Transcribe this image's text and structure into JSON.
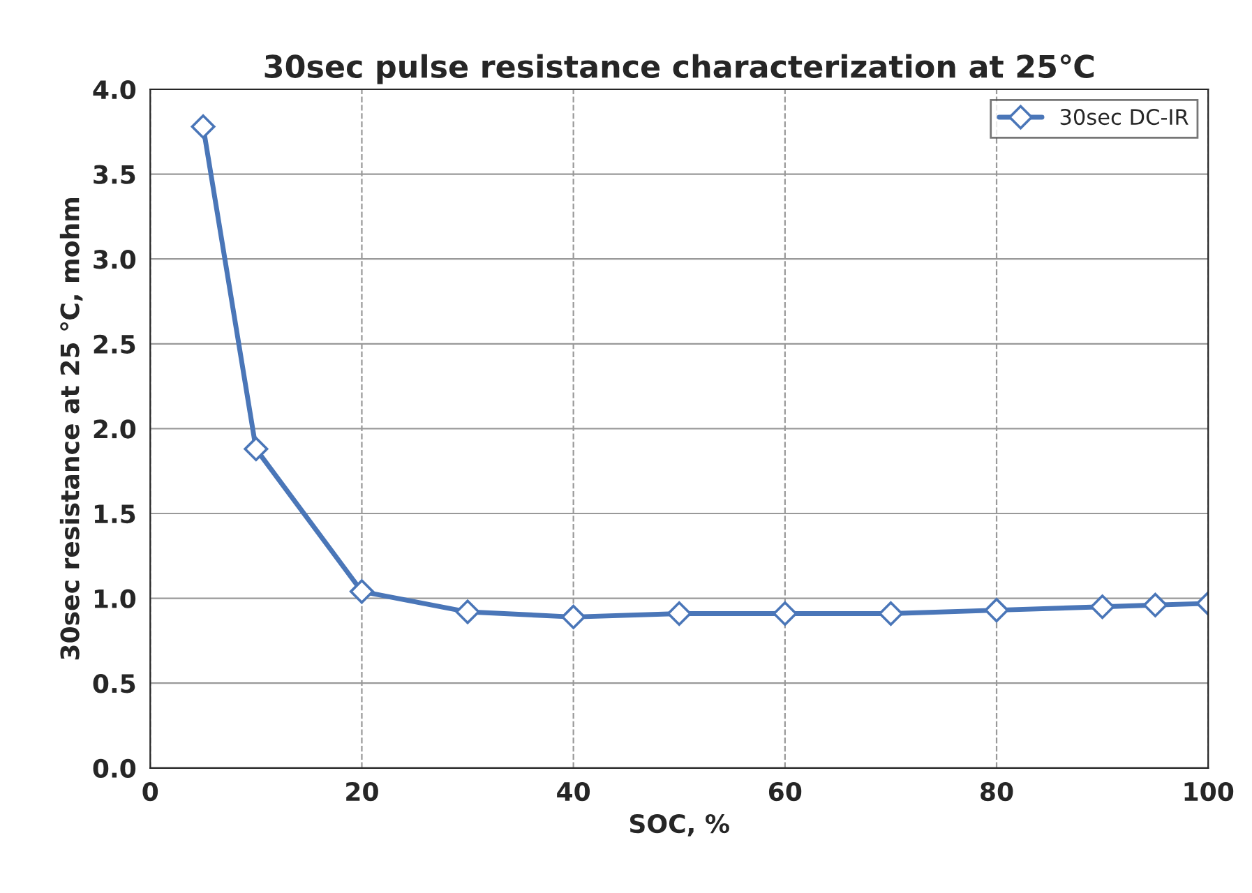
{
  "chart_data": {
    "type": "line",
    "title": "30sec pulse resistance characterization at 25℃",
    "xlabel": "SOC, %",
    "ylabel": "30sec resistance at 25 ℃, mohm",
    "x": [
      5,
      10,
      20,
      30,
      40,
      50,
      60,
      70,
      80,
      90,
      95,
      100
    ],
    "series": [
      {
        "name": "30sec DC-IR",
        "color": "#4a76b8",
        "values": [
          3.78,
          1.88,
          1.04,
          0.92,
          0.89,
          0.91,
          0.91,
          0.91,
          0.93,
          0.95,
          0.96,
          0.97
        ]
      }
    ],
    "xlim": [
      0,
      100
    ],
    "xticks": [
      0,
      20,
      40,
      60,
      80,
      100
    ],
    "ylim": [
      0,
      4
    ],
    "yticks": [
      {
        "value": 0,
        "label": "0.0"
      },
      {
        "value": 0.5,
        "label": "0.5"
      },
      {
        "value": 1,
        "label": "1.0"
      },
      {
        "value": 1.5,
        "label": "1.5"
      },
      {
        "value": 2,
        "label": "2.0"
      },
      {
        "value": 2.5,
        "label": "2.5"
      },
      {
        "value": 3,
        "label": "3.0"
      },
      {
        "value": 3.5,
        "label": "3.5"
      },
      {
        "value": 4,
        "label": "4.0"
      }
    ],
    "grid": true,
    "legend": "top right",
    "marker": "diamond",
    "line_style": "solid"
  }
}
